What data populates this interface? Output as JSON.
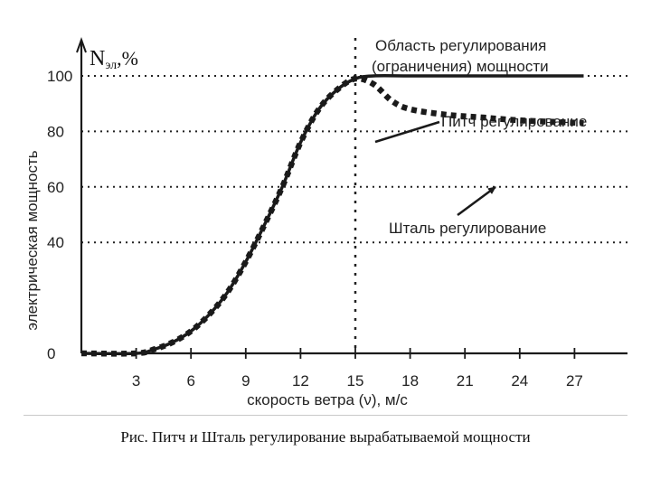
{
  "chart_data": {
    "type": "line",
    "title": "",
    "ylabel": "электрическая мощность",
    "ylabel_top": "N",
    "ylabel_top_sub": "эл",
    "ylabel_top_unit": ",%",
    "xlabel": "скорость ветра (ν), м/с",
    "xlim": [
      0,
      30
    ],
    "ylim": [
      0,
      110
    ],
    "x_ticks": [
      3,
      6,
      9,
      12,
      15,
      18,
      21,
      24,
      27
    ],
    "y_ticks": [
      0,
      40,
      60,
      80,
      100
    ],
    "y_tick_labels": [
      "0",
      "40",
      "60",
      "80",
      "100"
    ],
    "grid": "dotted horizontal at 40, 60, 80, 100; dotted vertical at 15",
    "series": [
      {
        "label": "Питч регулирование",
        "style": "solid",
        "x": [
          0,
          3,
          4,
          5,
          6,
          7,
          8,
          9,
          10,
          11,
          12,
          13,
          14,
          15,
          16,
          18,
          21,
          24,
          27.5
        ],
        "y": [
          0,
          0,
          1.5,
          4,
          8,
          14,
          22,
          33,
          46,
          60,
          76,
          88,
          95,
          99,
          100,
          100,
          100,
          100,
          100
        ]
      },
      {
        "label": "Шталь регулирование",
        "style": "dotted",
        "x": [
          0,
          3,
          4,
          5,
          6,
          7,
          8,
          9,
          10,
          11,
          12,
          13,
          14,
          15,
          16,
          17,
          18,
          20,
          22,
          24,
          27.5
        ],
        "y": [
          0,
          0,
          1.5,
          4,
          8,
          14,
          22,
          33,
          46,
          60,
          76,
          88,
          95,
          99,
          97,
          91,
          88,
          86,
          85,
          84,
          83
        ]
      }
    ],
    "annotations": {
      "region_line1": "Область регулирования",
      "region_line2": "(ограничения) мощности",
      "pitch": "Питч регулирование",
      "stall": "Шталь регулирование"
    }
  },
  "caption": "Рис.  Питч и Шталь регулирование вырабатываемой мощности",
  "colors": {
    "line": "#1a1a1a",
    "grid": "#222222",
    "text": "#222222"
  }
}
